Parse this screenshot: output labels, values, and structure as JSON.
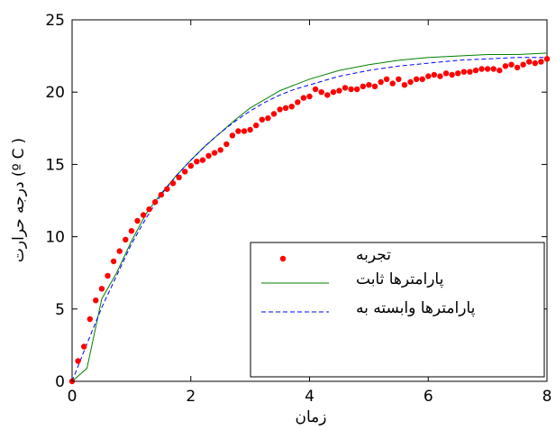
{
  "chart_data": {
    "type": "line",
    "xlabel": "زمان",
    "ylabel": "درجه حرارت (ºC)",
    "xlim": [
      0,
      8
    ],
    "ylim": [
      0,
      25
    ],
    "x_ticks": [
      0,
      2,
      4,
      6,
      8
    ],
    "y_ticks": [
      0,
      5,
      10,
      15,
      20,
      25
    ],
    "x_tick_labels": [
      "0",
      "2",
      "4",
      "6",
      "8"
    ],
    "y_tick_labels": [
      "0",
      "5",
      "10",
      "15",
      "20",
      "25"
    ],
    "grid": false,
    "legend_position": "lower-right",
    "series": [
      {
        "name": "تجربه",
        "style": "markers",
        "color": "#ff0000",
        "x": [
          0.0,
          0.1,
          0.2,
          0.3,
          0.4,
          0.5,
          0.6,
          0.7,
          0.8,
          0.9,
          1.0,
          1.1,
          1.2,
          1.3,
          1.4,
          1.5,
          1.6,
          1.7,
          1.8,
          1.9,
          2.0,
          2.1,
          2.2,
          2.3,
          2.4,
          2.5,
          2.6,
          2.7,
          2.8,
          2.9,
          3.0,
          3.1,
          3.2,
          3.3,
          3.4,
          3.5,
          3.6,
          3.7,
          3.8,
          3.9,
          4.0,
          4.1,
          4.2,
          4.3,
          4.4,
          4.5,
          4.6,
          4.7,
          4.8,
          4.9,
          5.0,
          5.1,
          5.2,
          5.3,
          5.4,
          5.5,
          5.6,
          5.7,
          5.8,
          5.9,
          6.0,
          6.1,
          6.2,
          6.3,
          6.4,
          6.5,
          6.6,
          6.7,
          6.8,
          6.9,
          7.0,
          7.1,
          7.2,
          7.3,
          7.4,
          7.5,
          7.6,
          7.7,
          7.8,
          7.9,
          8.0
        ],
        "y": [
          0.0,
          1.4,
          2.4,
          4.3,
          5.6,
          6.4,
          7.3,
          8.3,
          9.0,
          9.8,
          10.4,
          11.1,
          11.5,
          11.9,
          12.4,
          12.9,
          13.3,
          13.7,
          14.1,
          14.5,
          14.9,
          15.2,
          15.3,
          15.6,
          15.8,
          16.0,
          16.4,
          17.0,
          17.3,
          17.3,
          17.4,
          17.7,
          18.1,
          18.2,
          18.5,
          18.8,
          18.9,
          19.0,
          19.3,
          19.6,
          19.7,
          20.2,
          20.0,
          19.8,
          20.0,
          20.1,
          20.3,
          20.2,
          20.2,
          20.4,
          20.5,
          20.4,
          20.7,
          20.9,
          20.6,
          20.9,
          20.5,
          20.7,
          20.9,
          20.9,
          21.1,
          21.2,
          21.1,
          21.3,
          21.2,
          21.3,
          21.4,
          21.4,
          21.5,
          21.6,
          21.6,
          21.6,
          21.5,
          21.8,
          21.9,
          21.7,
          21.9,
          22.1,
          22.0,
          22.1,
          22.3
        ]
      },
      {
        "name": "پارامترها ثابت",
        "style": "solid",
        "color": "#008000",
        "x": [
          0.0,
          0.25,
          0.5,
          0.75,
          1.0,
          1.25,
          1.5,
          1.75,
          2.0,
          2.25,
          2.5,
          2.75,
          3.0,
          3.25,
          3.5,
          3.75,
          4.0,
          4.5,
          5.0,
          5.5,
          6.0,
          6.5,
          7.0,
          7.5,
          8.0
        ],
        "y": [
          0.0,
          0.9,
          5.7,
          7.5,
          9.7,
          11.6,
          13.0,
          14.2,
          15.3,
          16.3,
          17.2,
          18.1,
          18.9,
          19.5,
          20.1,
          20.5,
          20.9,
          21.5,
          21.9,
          22.2,
          22.4,
          22.5,
          22.6,
          22.6,
          22.7
        ]
      },
      {
        "name": "پارامترها وابسته به",
        "style": "dashed",
        "color": "#0000ff",
        "x": [
          0.0,
          0.25,
          0.5,
          0.75,
          1.0,
          1.25,
          1.5,
          1.75,
          2.0,
          2.25,
          2.5,
          2.75,
          3.0,
          3.25,
          3.5,
          3.75,
          4.0,
          4.5,
          5.0,
          5.5,
          6.0,
          6.5,
          7.0,
          7.5,
          8.0
        ],
        "y": [
          0.0,
          2.6,
          5.1,
          7.3,
          9.5,
          11.3,
          12.9,
          14.2,
          15.3,
          16.3,
          17.2,
          18.0,
          18.7,
          19.3,
          19.8,
          20.2,
          20.5,
          21.1,
          21.5,
          21.8,
          22.0,
          22.2,
          22.3,
          22.4,
          22.4
        ]
      }
    ]
  }
}
